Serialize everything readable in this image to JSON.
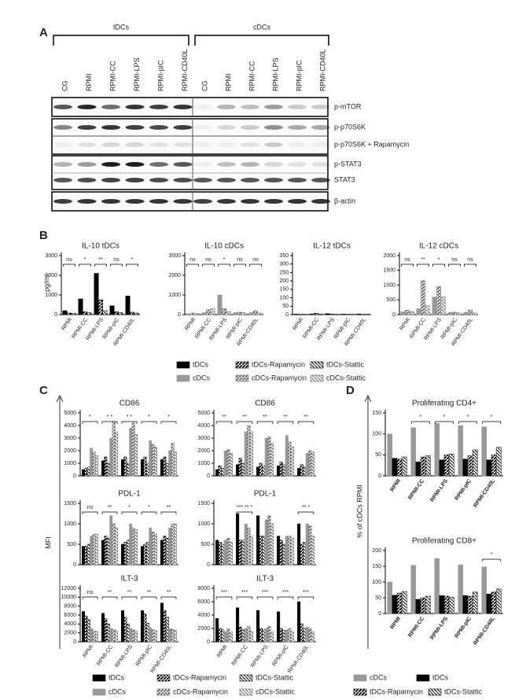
{
  "panel_labels": [
    "A",
    "B",
    "C",
    "D"
  ],
  "panel_a": {
    "groups": [
      "tDCs",
      "cDCs"
    ],
    "lanes": [
      "CG",
      "RPMI",
      "RPMI-CC",
      "RPMI-LPS",
      "RPMI-pIC",
      "RPMI-CD40L",
      "CG",
      "RPMI",
      "RPMI-CC",
      "RPMI-LPS",
      "RPMI-pIC",
      "RPMI-CD40L"
    ],
    "bands": [
      "p-mTOR",
      "p-p70S6K",
      "p-p70S6K + Rapamycin",
      "p-STAT3",
      "STAT3",
      "β-actin"
    ]
  },
  "b_ylabel": "pg/ml",
  "c_ylabel": "MFI",
  "d_ylabel": "% of cDCs RPMI",
  "chart_data": [
    {
      "type": "bar",
      "title": "IL-10 tDCs",
      "categories": [
        "RPMI",
        "RPMI-CC",
        "RPMI-LPS",
        "RPMI-pIC",
        "RPMI-CD40L"
      ],
      "ylim": [
        0,
        3000
      ],
      "yticks": [
        0,
        1000,
        2000,
        3000
      ],
      "annotations": [
        "ns",
        "*",
        "**",
        "ns",
        "*"
      ],
      "series": [
        {
          "name": "tDCs",
          "color": "#000000",
          "pattern": "solid",
          "values": [
            200,
            800,
            2100,
            450,
            950
          ]
        },
        {
          "name": "tDCs-Rapamycin",
          "color": "#000000",
          "pattern": "stripe",
          "values": [
            80,
            150,
            750,
            150,
            120
          ]
        },
        {
          "name": "tDCs-Stattic",
          "color": "#000000",
          "pattern": "backstripe",
          "values": [
            60,
            100,
            200,
            100,
            80
          ]
        }
      ]
    },
    {
      "type": "bar",
      "title": "IL-10 cDCs",
      "categories": [
        "RPMI",
        "RPMI-CC",
        "RPMI-LPS",
        "RPMI-pIC",
        "RPMI-CD40L"
      ],
      "ylim": [
        0,
        3000
      ],
      "yticks": [
        0,
        1000,
        2000,
        3000
      ],
      "annotations": [
        "ns",
        "ns",
        "*",
        "ns",
        "ns"
      ],
      "series": [
        {
          "name": "cDCs",
          "color": "#999999",
          "pattern": "solid",
          "values": [
            50,
            100,
            1000,
            100,
            100
          ]
        },
        {
          "name": "cDCs-Rapamycin",
          "color": "#666666",
          "pattern": "stripe",
          "values": [
            80,
            250,
            300,
            120,
            200
          ]
        },
        {
          "name": "cDCs-Stattic",
          "color": "#666666",
          "pattern": "backstripe",
          "values": [
            60,
            300,
            150,
            100,
            80
          ]
        }
      ]
    },
    {
      "type": "bar",
      "title": "IL-12 tDCs",
      "categories": [
        "RPMI",
        "RPMI-CC",
        "RPMI-LPS",
        "RPMI-pIC",
        "RPMI-CD40L"
      ],
      "ylim": [
        0,
        350
      ],
      "yticks": [
        0,
        50,
        100,
        150,
        200,
        250,
        300,
        350
      ],
      "series": [
        {
          "name": "tDCs",
          "color": "#000000",
          "pattern": "solid",
          "values": [
            3,
            4,
            6,
            3,
            4
          ]
        },
        {
          "name": "tDCs-Rapamycin",
          "color": "#000000",
          "pattern": "stripe",
          "values": [
            2,
            8,
            3,
            2,
            2
          ]
        },
        {
          "name": "tDCs-Stattic",
          "color": "#000000",
          "pattern": "backstripe",
          "values": [
            2,
            3,
            2,
            2,
            2
          ]
        }
      ]
    },
    {
      "type": "bar",
      "title": "IL-12 cDCs",
      "categories": [
        "RPMI",
        "RPMI-CC",
        "RPMI-LPS",
        "RPMI-pIC",
        "RPMI-CD40L"
      ],
      "ylim": [
        0,
        2000
      ],
      "yticks": [
        0,
        500,
        1000,
        1500,
        2000
      ],
      "annotations": [
        "ns",
        "**",
        "*",
        "ns",
        "ns"
      ],
      "series": [
        {
          "name": "cDCs",
          "color": "#999999",
          "pattern": "solid",
          "values": [
            100,
            200,
            600,
            80,
            80
          ]
        },
        {
          "name": "cDCs-Rapamycin",
          "color": "#666666",
          "pattern": "stripe",
          "values": [
            150,
            1150,
            950,
            80,
            150
          ]
        },
        {
          "name": "cDCs-Stattic",
          "color": "#666666",
          "pattern": "backstripe",
          "values": [
            100,
            300,
            600,
            60,
            60
          ]
        }
      ]
    },
    {
      "type": "bar",
      "title": "CD86",
      "ylim": [
        0,
        5000
      ],
      "yticks": [
        0,
        1000,
        2000,
        3000,
        4000,
        5000
      ],
      "annotations": [
        "*",
        "*  *",
        "*  *",
        "*",
        "*"
      ],
      "series": [
        {
          "name": "tDCs",
          "color": "#000000",
          "pattern": "solid",
          "values": [
            500,
            1200,
            1300,
            1300,
            1300
          ]
        },
        {
          "name": "tDCs-Rapamycin",
          "color": "#000000",
          "pattern": "stripe",
          "values": [
            600,
            1500,
            1500,
            1500,
            1500
          ]
        },
        {
          "name": "tDCs-Stattic",
          "color": "#000000",
          "pattern": "backstripe",
          "values": [
            700,
            1000,
            1000,
            1000,
            1000
          ]
        },
        {
          "name": "cDCs",
          "color": "#999999",
          "pattern": "solid",
          "values": [
            2200,
            3000,
            3800,
            2800,
            2000
          ]
        },
        {
          "name": "cDCs-Rapamycin",
          "color": "#666666",
          "pattern": "stripe",
          "values": [
            1900,
            4300,
            4200,
            2500,
            2600
          ]
        },
        {
          "name": "cDCs-Stattic",
          "color": "#666666",
          "pattern": "backstripe",
          "values": [
            1600,
            3500,
            3300,
            2300,
            1900
          ]
        }
      ]
    },
    {
      "type": "bar",
      "title": "CD86",
      "ylim": [
        0,
        5000
      ],
      "yticks": [
        0,
        1000,
        2000,
        3000,
        4000,
        5000
      ],
      "annotations": [
        "**",
        "**",
        "**",
        "**",
        "**"
      ],
      "series": [
        {
          "name": "tDCs",
          "color": "#000000",
          "pattern": "solid",
          "values": [
            500,
            900,
            700,
            800,
            600
          ]
        },
        {
          "name": "tDCs-Rapamycin",
          "color": "#000000",
          "pattern": "stripe",
          "values": [
            800,
            1400,
            1000,
            1100,
            900
          ]
        },
        {
          "name": "tDCs-Stattic",
          "color": "#000000",
          "pattern": "backstripe",
          "values": [
            600,
            1000,
            800,
            900,
            700
          ]
        },
        {
          "name": "cDCs",
          "color": "#999999",
          "pattern": "solid",
          "values": [
            2000,
            3500,
            3000,
            3200,
            1800
          ]
        },
        {
          "name": "cDCs-Rapamycin",
          "color": "#666666",
          "pattern": "stripe",
          "values": [
            2100,
            4000,
            3100,
            2700,
            2000
          ]
        },
        {
          "name": "cDCs-Stattic",
          "color": "#666666",
          "pattern": "backstripe",
          "values": [
            1800,
            3500,
            2600,
            2300,
            1900
          ]
        }
      ]
    },
    {
      "type": "bar",
      "title": "PDL-1",
      "ylim": [
        0,
        1500
      ],
      "yticks": [
        0,
        500,
        1000,
        1500
      ],
      "annotations": [
        "ns",
        "**",
        "*",
        "*",
        "**"
      ],
      "series": [
        {
          "name": "tDCs",
          "color": "#000000",
          "pattern": "solid",
          "values": [
            450,
            600,
            500,
            450,
            600
          ]
        },
        {
          "name": "tDCs-Rapamycin",
          "color": "#000000",
          "pattern": "stripe",
          "values": [
            450,
            700,
            550,
            500,
            700
          ]
        },
        {
          "name": "tDCs-Stattic",
          "color": "#000000",
          "pattern": "backstripe",
          "values": [
            500,
            650,
            600,
            550,
            650
          ]
        },
        {
          "name": "cDCs",
          "color": "#999999",
          "pattern": "solid",
          "values": [
            700,
            1200,
            1000,
            900,
            900
          ]
        },
        {
          "name": "cDCs-Rapamycin",
          "color": "#666666",
          "pattern": "stripe",
          "values": [
            750,
            1000,
            900,
            800,
            1000
          ]
        },
        {
          "name": "cDCs-Stattic",
          "color": "#666666",
          "pattern": "backstripe",
          "values": [
            750,
            900,
            850,
            750,
            1000
          ]
        }
      ]
    },
    {
      "type": "bar",
      "title": "PDL-1",
      "ylim": [
        0,
        1500
      ],
      "yticks": [
        0,
        500,
        1000,
        1500
      ],
      "annotations": [
        null,
        "***  **  *",
        null,
        null,
        "**  *"
      ],
      "series": [
        {
          "name": "tDCs",
          "color": "#000000",
          "pattern": "solid",
          "values": [
            600,
            1250,
            1200,
            700,
            1000
          ]
        },
        {
          "name": "tDCs-Rapamycin",
          "color": "#000000",
          "pattern": "stripe",
          "values": [
            550,
            600,
            700,
            600,
            500
          ]
        },
        {
          "name": "tDCs-Stattic",
          "color": "#000000",
          "pattern": "backstripe",
          "values": [
            500,
            600,
            700,
            500,
            550
          ]
        },
        {
          "name": "cDCs",
          "color": "#999999",
          "pattern": "solid",
          "values": [
            600,
            1000,
            1100,
            700,
            1000
          ]
        },
        {
          "name": "cDCs-Rapamycin",
          "color": "#666666",
          "pattern": "stripe",
          "values": [
            650,
            900,
            1200,
            700,
            950
          ]
        },
        {
          "name": "cDCs-Stattic",
          "color": "#666666",
          "pattern": "backstripe",
          "values": [
            550,
            700,
            1000,
            650,
            700
          ]
        }
      ]
    },
    {
      "type": "bar",
      "title": "ILT-3",
      "categories": [
        "RPMI",
        "RPMI-CC",
        "RPMI-LPS",
        "RPMI-pIC",
        "RPMI-CD40L"
      ],
      "ylim": [
        0,
        12000
      ],
      "yticks": [
        0,
        2000,
        4000,
        6000,
        8000,
        10000,
        12000
      ],
      "annotations": [
        "ns",
        "**",
        "**",
        "**",
        "**"
      ],
      "series": [
        {
          "name": "tDCs",
          "color": "#000000",
          "pattern": "solid",
          "values": [
            6800,
            6400,
            7000,
            7000,
            8700
          ]
        },
        {
          "name": "tDCs-Rapamycin",
          "color": "#000000",
          "pattern": "stripe",
          "values": [
            5800,
            5200,
            5500,
            6300,
            7000
          ]
        },
        {
          "name": "tDCs-Stattic",
          "color": "#000000",
          "pattern": "backstripe",
          "values": [
            5000,
            4000,
            4000,
            4200,
            5500
          ]
        },
        {
          "name": "cDCs",
          "color": "#999999",
          "pattern": "solid",
          "values": [
            3000,
            3000,
            3000,
            3200,
            3000
          ]
        },
        {
          "name": "cDCs-Rapamycin",
          "color": "#666666",
          "pattern": "stripe",
          "values": [
            2500,
            2800,
            2700,
            2700,
            2800
          ]
        },
        {
          "name": "cDCs-Stattic",
          "color": "#666666",
          "pattern": "backstripe",
          "values": [
            2300,
            2500,
            2400,
            2500,
            2600
          ]
        }
      ]
    },
    {
      "type": "bar",
      "title": "ILT-3",
      "categories": [
        "RPMI",
        "RPMI-CC",
        "RPMI-LPS",
        "RPMI-pIC",
        "RPMI-CD40L"
      ],
      "ylim": [
        0,
        8000
      ],
      "yticks": [
        0,
        2000,
        4000,
        6000,
        8000
      ],
      "annotations": [
        "***",
        "***",
        "***",
        "***",
        "***"
      ],
      "series": [
        {
          "name": "tDCs",
          "color": "#000000",
          "pattern": "solid",
          "values": [
            3500,
            5100,
            4700,
            4500,
            6000
          ]
        },
        {
          "name": "tDCs-Rapamycin",
          "color": "#000000",
          "pattern": "stripe",
          "values": [
            2000,
            2200,
            2000,
            2000,
            2700
          ]
        },
        {
          "name": "tDCs-Stattic",
          "color": "#000000",
          "pattern": "backstripe",
          "values": [
            1800,
            1800,
            1800,
            1700,
            2000
          ]
        },
        {
          "name": "cDCs",
          "color": "#999999",
          "pattern": "solid",
          "values": [
            1500,
            2000,
            2000,
            1800,
            2200
          ]
        },
        {
          "name": "cDCs-Rapamycin",
          "color": "#666666",
          "pattern": "stripe",
          "values": [
            2000,
            2300,
            2300,
            2000,
            2000
          ]
        },
        {
          "name": "cDCs-Stattic",
          "color": "#666666",
          "pattern": "backstripe",
          "values": [
            1500,
            1600,
            1500,
            1500,
            1500
          ]
        }
      ]
    },
    {
      "type": "bar",
      "title": "Proliferating CD4+",
      "categories": [
        "RPMI",
        "RPMI-CC",
        "RPMI-LPS",
        "RPMI-pIC",
        "RPMI-CD40L"
      ],
      "ylim": [
        0,
        150
      ],
      "yticks": [
        0,
        50,
        100,
        150
      ],
      "annotations": [
        null,
        "*",
        "*",
        "*",
        "*"
      ],
      "series": [
        {
          "name": "cDCs",
          "color": "#999999",
          "pattern": "solid",
          "values": [
            100,
            115,
            125,
            120,
            117
          ]
        },
        {
          "name": "tDCs",
          "color": "#000000",
          "pattern": "solid",
          "values": [
            42,
            33,
            38,
            40,
            38
          ]
        },
        {
          "name": "tDCs-Rapamycin",
          "color": "#000000",
          "pattern": "stripe",
          "values": [
            40,
            45,
            50,
            48,
            50
          ]
        },
        {
          "name": "tDCs-Stattic",
          "color": "#000000",
          "pattern": "backstripe",
          "values": [
            45,
            48,
            52,
            62,
            68
          ]
        }
      ]
    },
    {
      "type": "bar",
      "title": "Proliferating CD8+",
      "categories": [
        "RPMI",
        "RPMI-CC",
        "RPMI-LPS",
        "RPMI-pIC",
        "RPMI-CD40L"
      ],
      "ylim": [
        0,
        200
      ],
      "yticks": [
        0,
        50,
        100,
        150,
        200
      ],
      "annotations": [
        null,
        null,
        null,
        null,
        "*"
      ],
      "series": [
        {
          "name": "cDCs",
          "color": "#999999",
          "pattern": "solid",
          "values": [
            100,
            153,
            175,
            155,
            148
          ]
        },
        {
          "name": "tDCs",
          "color": "#000000",
          "pattern": "solid",
          "values": [
            58,
            45,
            57,
            57,
            62
          ]
        },
        {
          "name": "tDCs-Rapamycin",
          "color": "#000000",
          "pattern": "stripe",
          "values": [
            65,
            50,
            55,
            55,
            68
          ]
        },
        {
          "name": "tDCs-Stattic",
          "color": "#000000",
          "pattern": "backstripe",
          "values": [
            70,
            55,
            52,
            68,
            78
          ]
        }
      ]
    }
  ]
}
